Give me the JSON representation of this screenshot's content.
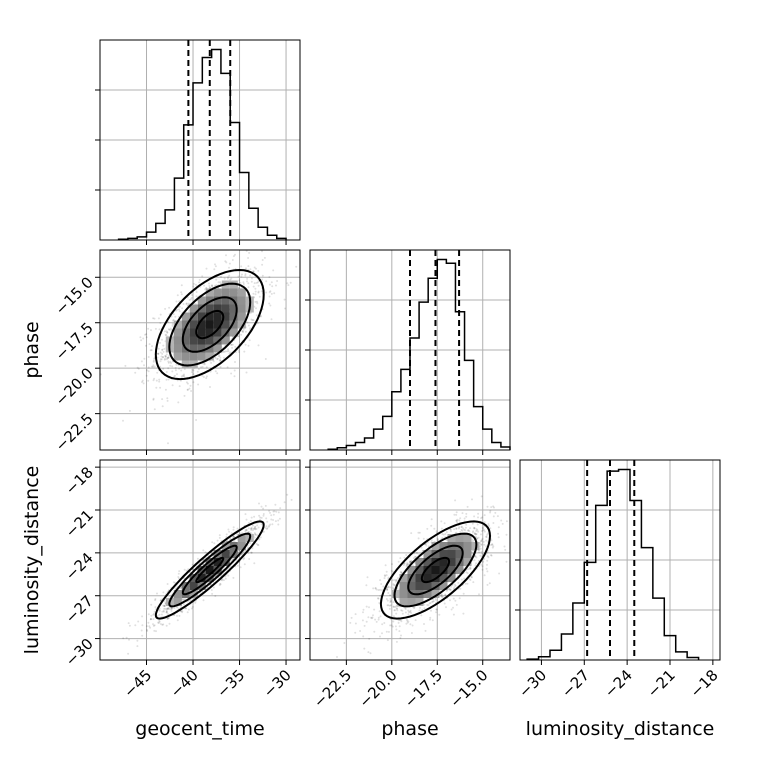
{
  "chart_data": {
    "type": "corner",
    "parameters": [
      "geocent_time",
      "phase",
      "luminosity_distance"
    ],
    "ranges": {
      "geocent_time": [
        -50,
        -28.5
      ],
      "phase": [
        -24.5,
        -13.5
      ],
      "luminosity_distance": [
        -31.5,
        -17.5
      ]
    },
    "ticks": {
      "geocent_time": [
        -45,
        -40,
        -35,
        -30
      ],
      "phase": [
        -22.5,
        -20.0,
        -17.5,
        -15.0
      ],
      "luminosity_distance": [
        -30,
        -27,
        -24,
        -21,
        -18
      ]
    },
    "tick_labels": {
      "geocent_time": [
        "−45",
        "−40",
        "−35",
        "−30"
      ],
      "phase": [
        "−22.5",
        "−20.0",
        "−17.5",
        "−15.0"
      ],
      "luminosity_distance": [
        "−30",
        "−27",
        "−24",
        "−21",
        "−18"
      ]
    },
    "quantiles": {
      "geocent_time": [
        -40.5,
        -38.2,
        -36.0
      ],
      "phase": [
        -19.0,
        -17.6,
        -16.3
      ],
      "luminosity_distance": [
        -26.8,
        -25.2,
        -23.5
      ]
    },
    "histograms": {
      "geocent_time": {
        "edges": [
          -48,
          -47,
          -46,
          -45,
          -44,
          -43,
          -42,
          -41,
          -40,
          -39,
          -38,
          -37,
          -36,
          -35,
          -34,
          -33,
          -32,
          -31,
          -30
        ],
        "counts": [
          1,
          2,
          4,
          10,
          21,
          38,
          78,
          145,
          198,
          230,
          240,
          210,
          148,
          85,
          40,
          16,
          6,
          2
        ]
      },
      "phase": {
        "edges": [
          -23.5,
          -23.0,
          -22.5,
          -22.0,
          -21.5,
          -21.0,
          -20.5,
          -20.0,
          -19.5,
          -19.0,
          -18.5,
          -18.0,
          -17.5,
          -17.0,
          -16.5,
          -16.0,
          -15.5,
          -15.0,
          -14.5,
          -14.0,
          -13.5
        ],
        "counts": [
          1,
          3,
          6,
          10,
          16,
          28,
          45,
          78,
          108,
          150,
          198,
          230,
          255,
          250,
          185,
          120,
          58,
          28,
          10,
          4
        ]
      },
      "luminosity_distance": {
        "edges": [
          -31,
          -30.2,
          -29.4,
          -28.6,
          -27.8,
          -27.0,
          -26.2,
          -25.4,
          -24.6,
          -23.8,
          -23.0,
          -22.2,
          -21.4,
          -20.6,
          -19.8,
          -19.0
        ],
        "counts": [
          1,
          4,
          12,
          32,
          70,
          120,
          190,
          232,
          234,
          196,
          138,
          76,
          30,
          10,
          3
        ]
      }
    },
    "pairs": [
      {
        "x": "geocent_time",
        "y": "phase",
        "center": [
          -38.2,
          -17.6
        ],
        "sd": [
          2.9,
          1.5
        ],
        "corr": 0.55
      },
      {
        "x": "geocent_time",
        "y": "luminosity_distance",
        "center": [
          -38.2,
          -25.2
        ],
        "sd": [
          2.9,
          1.7
        ],
        "corr": 0.93
      },
      {
        "x": "phase",
        "y": "luminosity_distance",
        "center": [
          -17.6,
          -25.2
        ],
        "sd": [
          1.5,
          1.7
        ],
        "corr": 0.7
      }
    ],
    "grid": true
  }
}
